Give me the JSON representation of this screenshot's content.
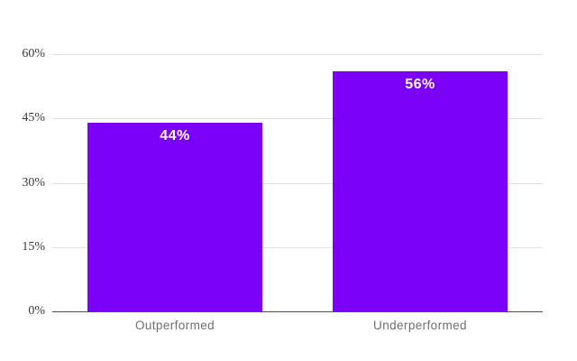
{
  "chart_data": {
    "type": "bar",
    "title": "",
    "xlabel": "",
    "ylabel": "",
    "categories": [
      "Outperformed",
      "Underperformed"
    ],
    "values": [
      44,
      56
    ],
    "value_labels": [
      "44%",
      "56%"
    ],
    "ylim": [
      0,
      60
    ],
    "y_ticks": [
      0,
      15,
      30,
      45,
      60
    ],
    "y_tick_labels": [
      "0%",
      "15%",
      "30%",
      "45%",
      "60%"
    ],
    "grid": true,
    "legend": false,
    "colors": {
      "bar": "#7a00f6",
      "value_label": "#ffffff",
      "gridline": "#e1e1e1",
      "axis_line": "#4d4d4d",
      "y_tick_label": "#3a3a3a",
      "x_tick_label": "#6e6e6e",
      "background": "#ffffff"
    }
  }
}
